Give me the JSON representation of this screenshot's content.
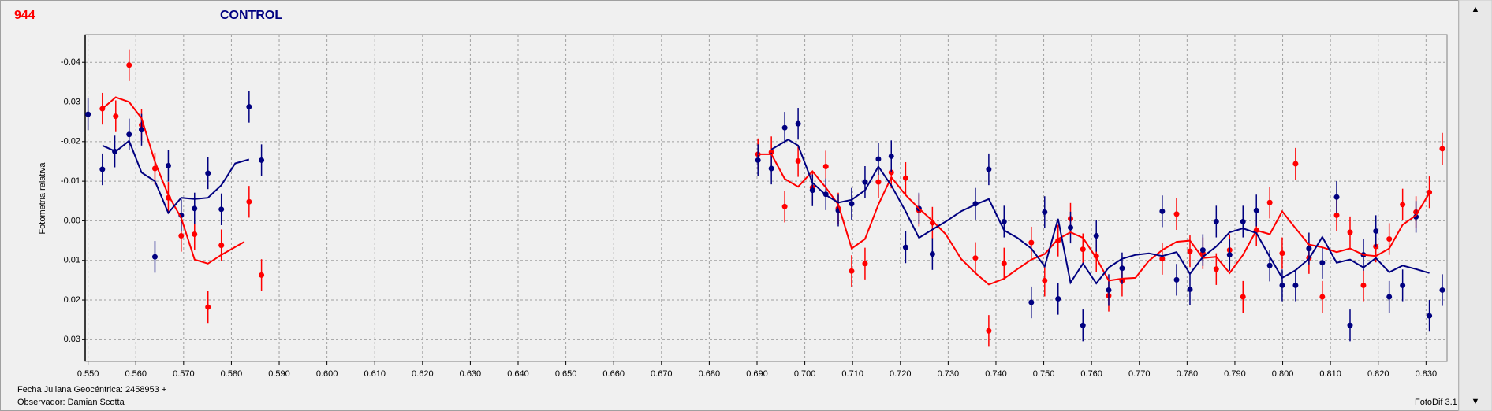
{
  "chart_data": {
    "type": "scatter",
    "id_label": "944",
    "title": "CONTROL",
    "ylabel": "Fotometria relativa",
    "xlabel": "Fecha Juliana Geocéntrica: 2458953 +",
    "observer": "Observador: Damian Scotta",
    "footer": "FotoDif 3.1",
    "grid": true,
    "xlim": [
      0.5494,
      0.8344
    ],
    "ylim": [
      0.0355,
      -0.047
    ],
    "xticks": [
      {
        "value": 0.55,
        "label": "0.550"
      },
      {
        "value": 0.56,
        "label": "0.560"
      },
      {
        "value": 0.57,
        "label": "0.570"
      },
      {
        "value": 0.58,
        "label": "0.580"
      },
      {
        "value": 0.59,
        "label": "0.590"
      },
      {
        "value": 0.6,
        "label": "0.600"
      },
      {
        "value": 0.61,
        "label": "0.610"
      },
      {
        "value": 0.62,
        "label": "0.620"
      },
      {
        "value": 0.63,
        "label": "0.630"
      },
      {
        "value": 0.64,
        "label": "0.640"
      },
      {
        "value": 0.65,
        "label": "0.650"
      },
      {
        "value": 0.66,
        "label": "0.660"
      },
      {
        "value": 0.67,
        "label": "0.670"
      },
      {
        "value": 0.68,
        "label": "0.680"
      },
      {
        "value": 0.69,
        "label": "0.690"
      },
      {
        "value": 0.7,
        "label": "0.700"
      },
      {
        "value": 0.71,
        "label": "0.710"
      },
      {
        "value": 0.72,
        "label": "0.720"
      },
      {
        "value": 0.73,
        "label": "0.730"
      },
      {
        "value": 0.74,
        "label": "0.740"
      },
      {
        "value": 0.75,
        "label": "0.750"
      },
      {
        "value": 0.76,
        "label": "0.760"
      },
      {
        "value": 0.77,
        "label": "0.770"
      },
      {
        "value": 0.78,
        "label": "0.780"
      },
      {
        "value": 0.79,
        "label": "0.790"
      },
      {
        "value": 0.8,
        "label": "0.800"
      },
      {
        "value": 0.81,
        "label": "0.810"
      },
      {
        "value": 0.82,
        "label": "0.820"
      },
      {
        "value": 0.83,
        "label": "0.830"
      }
    ],
    "yticks": [
      -0.04,
      -0.03,
      -0.02,
      -0.01,
      {
        "value": 0,
        "label": "0.00"
      },
      0.01,
      0.02,
      0.03
    ],
    "series": [
      {
        "type": "scatter",
        "color": "#ff0000",
        "error": 0.004,
        "x": [
          0.553,
          0.5558,
          0.5586,
          0.5612,
          0.564,
          0.5668,
          0.5695,
          0.5723,
          0.5751,
          0.5779,
          0.5837,
          0.5863,
          0.6902,
          0.693,
          0.6958,
          0.6986,
          0.7016,
          0.7044,
          0.707,
          0.7098,
          0.7126,
          0.7154,
          0.7181,
          0.7211,
          0.7239,
          0.7267,
          0.7357,
          0.7385,
          0.7417,
          0.7474,
          0.7502,
          0.753,
          0.7556,
          0.7582,
          0.761,
          0.7636,
          0.7664,
          0.7748,
          0.7778,
          0.7806,
          0.7833,
          0.7861,
          0.7889,
          0.7917,
          0.7945,
          0.7973,
          0.7999,
          0.8027,
          0.8055,
          0.8083,
          0.8113,
          0.8141,
          0.8169,
          0.8195,
          0.8223,
          0.8251,
          0.8279,
          0.8307,
          0.8334
        ],
        "values": [
          -0.0283,
          -0.0264,
          -0.0393,
          -0.0242,
          -0.0132,
          -0.0058,
          0.0038,
          0.0034,
          0.0218,
          0.0062,
          -0.0048,
          0.0137,
          -0.0168,
          -0.0173,
          -0.0036,
          -0.0151,
          -0.0084,
          -0.0137,
          -0.0031,
          0.0127,
          0.0108,
          -0.0098,
          -0.0122,
          -0.0108,
          -0.0026,
          0.0005,
          0.0094,
          0.0278,
          0.0108,
          0.0055,
          0.0151,
          0.005,
          -0.0005,
          0.0072,
          0.0089,
          0.0189,
          0.0151,
          0.0096,
          -0.0017,
          0.0077,
          0.0082,
          0.0122,
          0.0074,
          0.0192,
          0.0024,
          -0.0046,
          0.0082,
          -0.0144,
          0.0094,
          0.0192,
          -0.0014,
          0.0029,
          0.0163,
          0.0065,
          0.0046,
          -0.0041,
          -0.0022,
          -0.0072,
          -0.0182
        ]
      },
      {
        "type": "scatter",
        "color": "#000080",
        "error": 0.004,
        "x": [
          0.55,
          0.553,
          0.5556,
          0.5586,
          0.5612,
          0.564,
          0.5668,
          0.5695,
          0.5723,
          0.5751,
          0.5779,
          0.5837,
          0.5863,
          0.6902,
          0.693,
          0.6958,
          0.6986,
          0.7016,
          0.7044,
          0.707,
          0.7098,
          0.7126,
          0.7154,
          0.7181,
          0.7211,
          0.7239,
          0.7267,
          0.7357,
          0.7385,
          0.7417,
          0.7474,
          0.7502,
          0.753,
          0.7556,
          0.7582,
          0.761,
          0.7636,
          0.7664,
          0.7748,
          0.7778,
          0.7806,
          0.7833,
          0.7861,
          0.7889,
          0.7917,
          0.7945,
          0.7973,
          0.7999,
          0.8027,
          0.8055,
          0.8083,
          0.8113,
          0.8141,
          0.8169,
          0.8195,
          0.8223,
          0.8251,
          0.8279,
          0.8307,
          0.8334
        ],
        "values": [
          -0.0269,
          -0.013,
          -0.0175,
          -0.0218,
          -0.023,
          0.0091,
          -0.0139,
          -0.0014,
          -0.0031,
          -0.012,
          -0.0029,
          -0.0288,
          -0.0153,
          -0.0153,
          -0.0132,
          -0.0235,
          -0.0245,
          -0.0077,
          -0.0067,
          -0.0026,
          -0.0043,
          -0.0098,
          -0.0156,
          -0.0163,
          0.0067,
          -0.0031,
          0.0084,
          -0.0043,
          -0.013,
          0.0002,
          0.0206,
          -0.0022,
          0.0197,
          0.0017,
          0.0264,
          0.0038,
          0.0175,
          0.012,
          -0.0024,
          0.0149,
          0.0173,
          0.0074,
          0.0002,
          0.0086,
          0.0002,
          -0.0026,
          0.0113,
          0.0163,
          0.0163,
          0.007,
          0.0106,
          -0.006,
          0.0264,
          0.0086,
          0.0026,
          0.0192,
          0.0163,
          -0.001,
          0.024,
          0.0175
        ]
      },
      {
        "type": "line",
        "color": "#ff0000",
        "x": [
          0.553,
          0.5558,
          0.5586,
          0.5612,
          0.564,
          0.5668,
          0.5695,
          0.5723,
          0.5751,
          0.5779,
          0.5827,
          null,
          0.6902,
          0.693,
          0.6958,
          0.6986,
          0.7016,
          0.7044,
          0.707,
          0.7098,
          0.7126,
          0.7154,
          0.7181,
          0.7211,
          0.7239,
          0.7267,
          0.7295,
          0.7327,
          0.7357,
          0.7385,
          0.7417,
          0.7445,
          0.7474,
          0.7502,
          0.753,
          0.7556,
          0.7582,
          0.761,
          0.7636,
          0.7664,
          0.7692,
          0.772,
          0.7748,
          0.7778,
          0.7806,
          0.7833,
          0.7861,
          0.7889,
          0.7917,
          0.7945,
          0.7973,
          0.7999,
          0.8027,
          0.8055,
          0.8083,
          0.8113,
          0.8141,
          0.8169,
          0.8195,
          0.8223,
          0.8251,
          0.8279,
          0.8307
        ],
        "values": [
          -0.0283,
          -0.0312,
          -0.03,
          -0.0259,
          -0.0149,
          -0.0065,
          -0.0007,
          0.0098,
          0.0108,
          0.0086,
          0.0053,
          null,
          -0.0168,
          -0.0168,
          -0.0106,
          -0.0086,
          -0.0125,
          -0.0084,
          -0.0041,
          0.007,
          0.0046,
          -0.0041,
          -0.011,
          -0.0065,
          -0.0031,
          0,
          0.0034,
          0.0096,
          0.0132,
          0.0161,
          0.0146,
          0.0122,
          0.0098,
          0.0084,
          0.0046,
          0.0029,
          0.0043,
          0.0094,
          0.0151,
          0.0146,
          0.0144,
          0.0101,
          0.0074,
          0.0053,
          0.005,
          0.0094,
          0.0091,
          0.0132,
          0.0086,
          0.0024,
          0.0034,
          -0.0024,
          0.0019,
          0.006,
          0.0067,
          0.0079,
          0.007,
          0.0086,
          0.0089,
          0.007,
          0.001,
          -0.0014,
          -0.007
        ]
      },
      {
        "type": "line",
        "color": "#000080",
        "x": [
          0.553,
          0.5558,
          0.5586,
          0.5612,
          0.564,
          0.5668,
          0.5695,
          0.5723,
          0.5751,
          0.5779,
          0.5808,
          0.5837,
          null,
          0.693,
          0.6965,
          0.6986,
          0.7016,
          0.7044,
          0.707,
          0.7098,
          0.7126,
          0.7154,
          0.7181,
          0.7211,
          0.7239,
          0.7267,
          0.7295,
          0.7327,
          0.7357,
          0.7385,
          0.7417,
          0.7445,
          0.7474,
          0.7502,
          0.753,
          0.7556,
          0.7582,
          0.761,
          0.7636,
          0.7664,
          0.7692,
          0.772,
          0.7748,
          0.7778,
          0.7806,
          0.7833,
          0.7861,
          0.7889,
          0.7917,
          0.7945,
          0.7973,
          0.7999,
          0.8027,
          0.8055,
          0.8083,
          0.8113,
          0.8141,
          0.8169,
          0.8195,
          0.8223,
          0.8251,
          0.8279,
          0.8307
        ],
        "values": [
          -0.019,
          -0.0175,
          -0.0202,
          -0.0122,
          -0.01,
          -0.002,
          -0.0058,
          -0.0055,
          -0.0058,
          -0.009,
          -0.0145,
          -0.0155,
          null,
          -0.018,
          -0.0205,
          -0.019,
          -0.0096,
          -0.0065,
          -0.0046,
          -0.0053,
          -0.0077,
          -0.0137,
          -0.0089,
          -0.0024,
          0.0043,
          0.0022,
          0.0002,
          -0.0024,
          -0.0041,
          -0.0055,
          0.0024,
          0.0043,
          0.007,
          0.0115,
          -0.0005,
          0.0156,
          0.0108,
          0.0158,
          0.0118,
          0.0096,
          0.0086,
          0.0082,
          0.0089,
          0.0079,
          0.0134,
          0.0091,
          0.0065,
          0.0029,
          0.0019,
          0.0031,
          0.0091,
          0.0144,
          0.0125,
          0.0096,
          0.0041,
          0.0106,
          0.0098,
          0.0118,
          0.0094,
          0.013,
          0.0113,
          0.0122,
          0.0132
        ]
      }
    ]
  }
}
